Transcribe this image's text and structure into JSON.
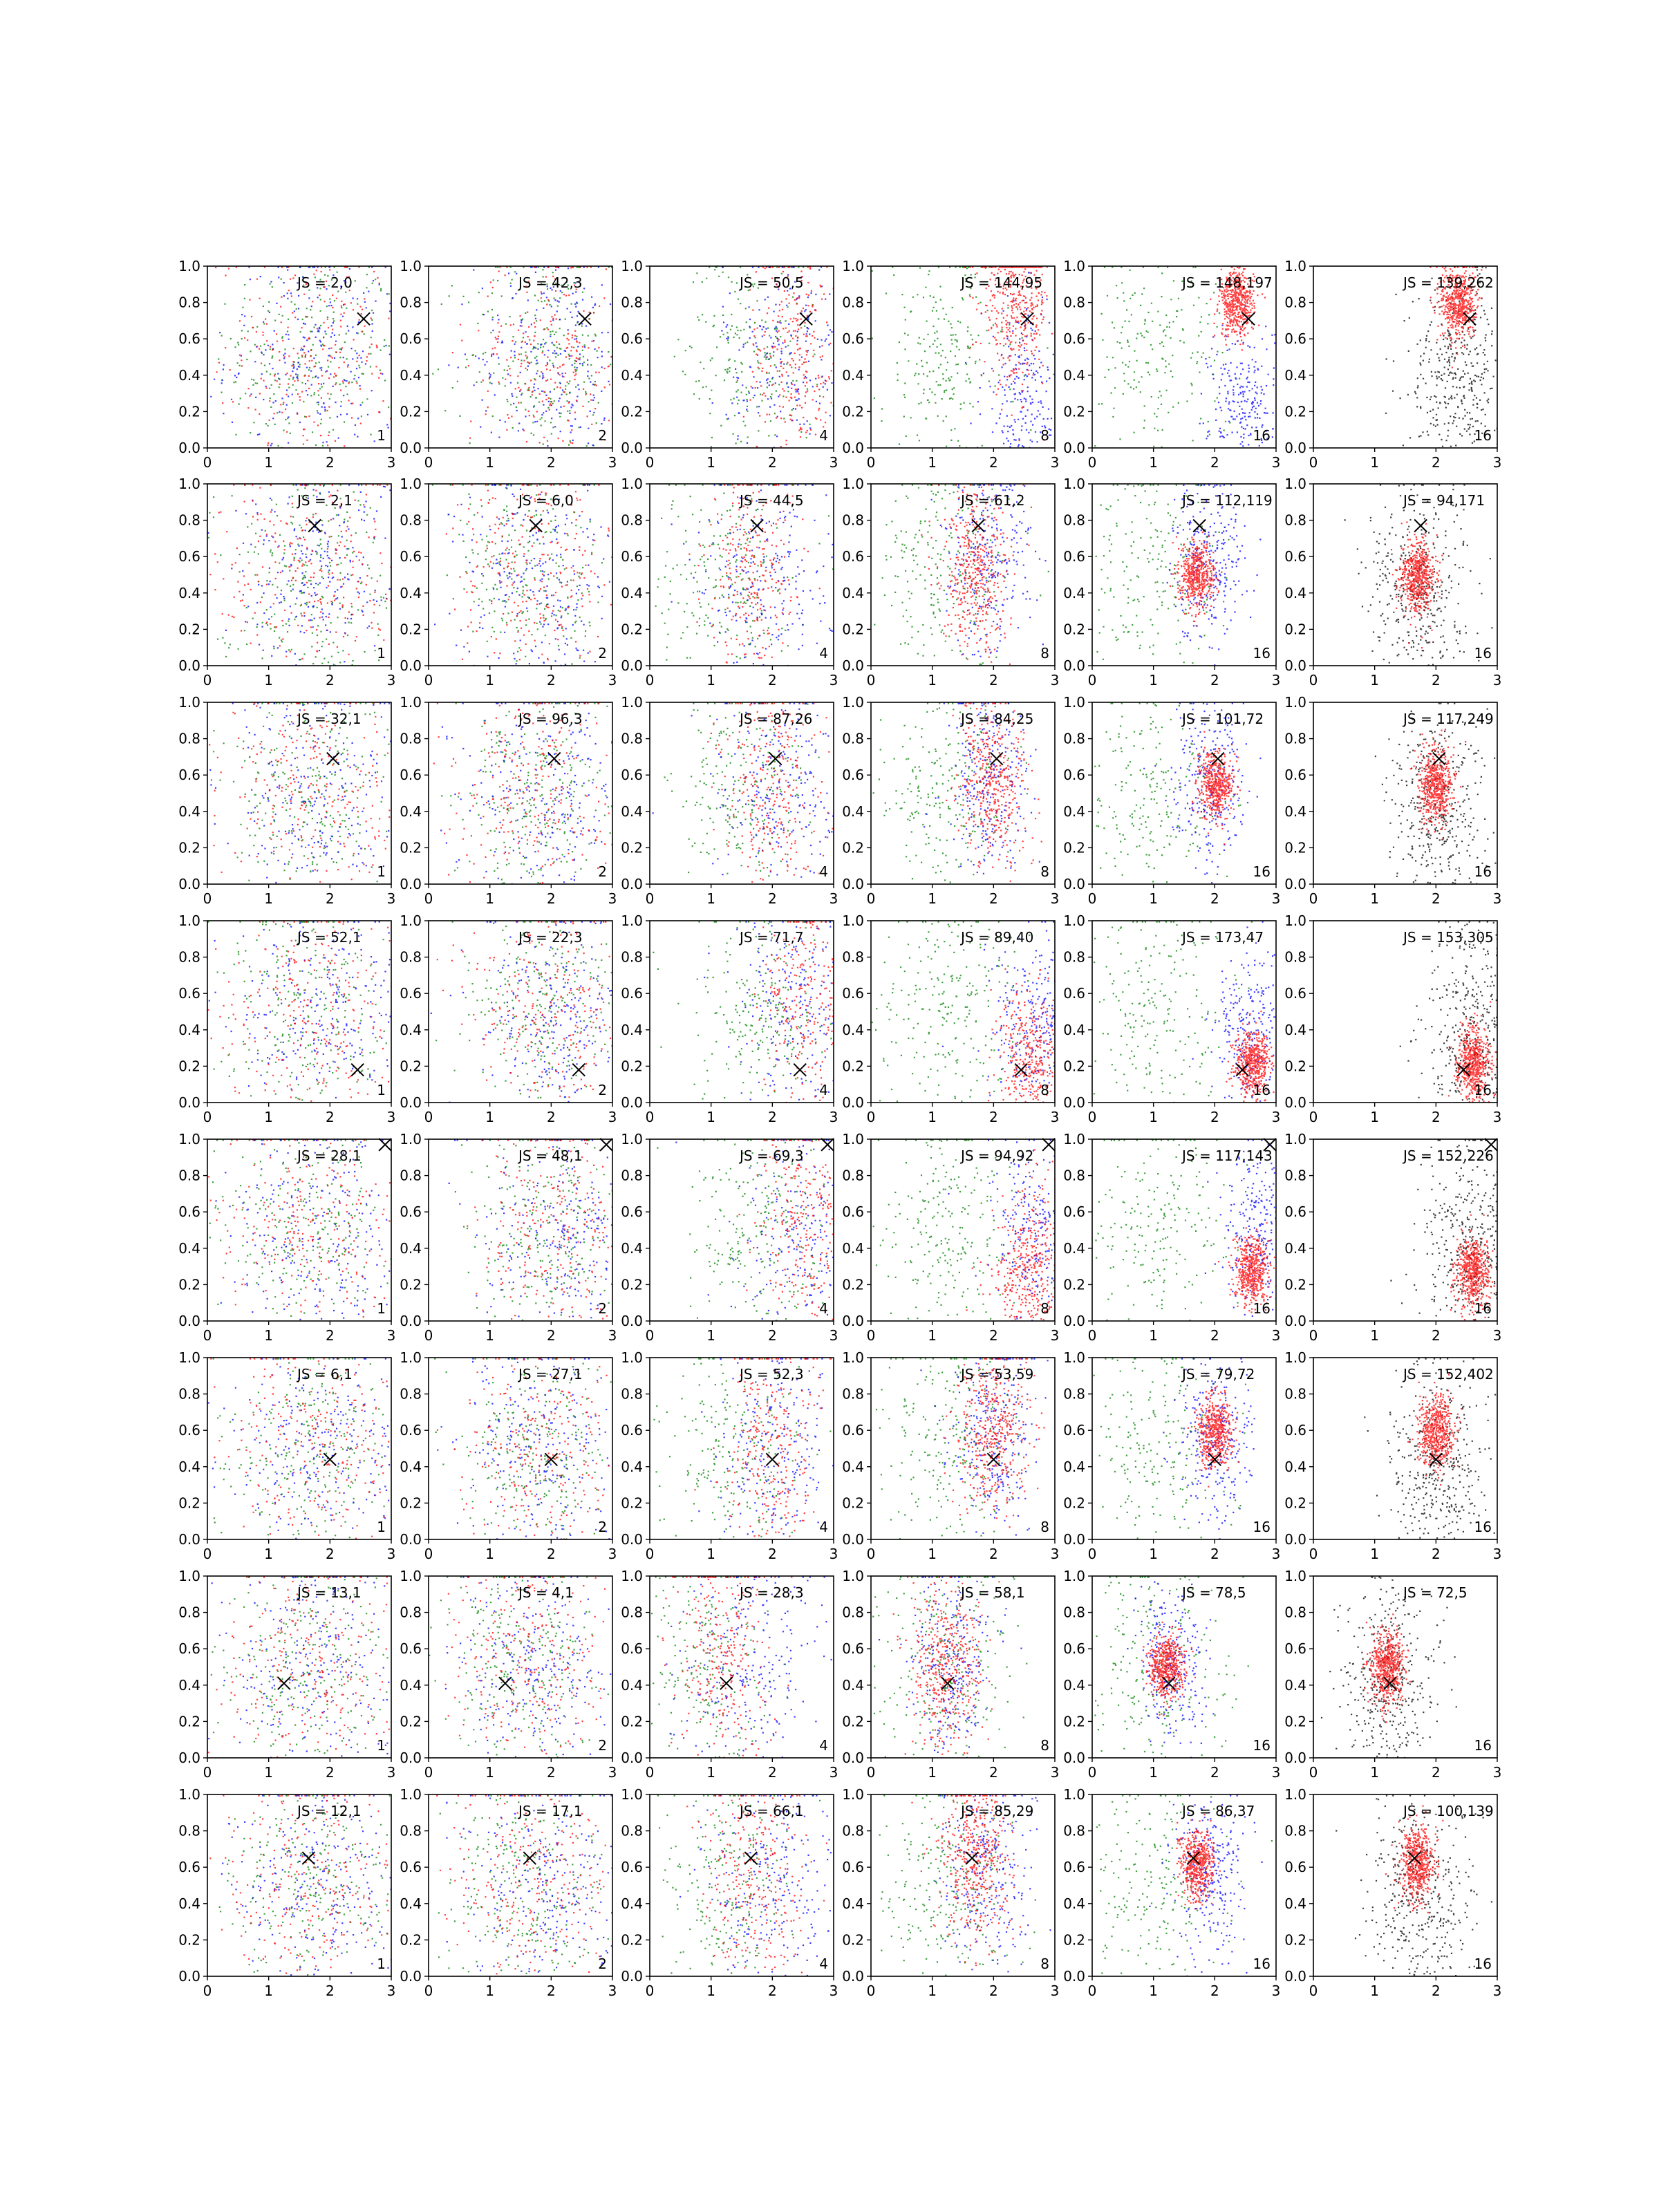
{
  "chart_data": {
    "type": "scatter",
    "layout": {
      "rows": 8,
      "cols": 6
    },
    "xlim": [
      0,
      3
    ],
    "ylim": [
      0,
      1
    ],
    "xticks": [
      "0",
      "1",
      "2",
      "3"
    ],
    "yticks": [
      "0.0",
      "0.2",
      "0.4",
      "0.6",
      "0.8",
      "1.0"
    ],
    "grid": false,
    "colors": {
      "green": "#008000",
      "blue": "#0000ff",
      "red": "#ff0000",
      "black": "#000000",
      "marker": "#000000"
    },
    "rows": [
      {
        "marker": [
          2.55,
          0.71
        ],
        "js_labels": [
          "JS = 2,0",
          "JS = 42,3",
          "JS = 50,5",
          "JS = 144,95",
          "JS = 148,197",
          "JS = 139,262"
        ],
        "corner_labels": [
          "1",
          "2",
          "4",
          "8",
          "16",
          "16"
        ],
        "red_center": [
          2.35,
          0.8
        ],
        "blue_center": [
          2.5,
          0.25
        ]
      },
      {
        "marker": [
          1.75,
          0.77
        ],
        "js_labels": [
          "JS = 2,1",
          "JS = 6,0",
          "JS = 44,5",
          "JS = 61,2",
          "JS = 112,119",
          "JS = 94,171"
        ],
        "corner_labels": [
          "1",
          "2",
          "4",
          "8",
          "16",
          "16"
        ],
        "red_center": [
          1.7,
          0.5
        ],
        "blue_center": [
          1.9,
          0.6
        ]
      },
      {
        "marker": [
          2.05,
          0.69
        ],
        "js_labels": [
          "JS = 32,1",
          "JS = 96,3",
          "JS = 87,26",
          "JS = 84,25",
          "JS = 101,72",
          "JS = 117,249"
        ],
        "corner_labels": [
          "1",
          "2",
          "4",
          "8",
          "16",
          "16"
        ],
        "red_center": [
          2.0,
          0.55
        ],
        "blue_center": [
          1.9,
          0.55
        ]
      },
      {
        "marker": [
          2.45,
          0.18
        ],
        "js_labels": [
          "JS = 52,1",
          "JS = 22,3",
          "JS = 71,7",
          "JS = 89,40",
          "JS = 173,47",
          "JS = 153,305"
        ],
        "corner_labels": [
          "1",
          "2",
          "4",
          "8",
          "16",
          "16"
        ],
        "red_center": [
          2.6,
          0.22
        ],
        "blue_center": [
          2.6,
          0.4
        ]
      },
      {
        "marker": [
          2.9,
          0.97
        ],
        "js_labels": [
          "JS = 28,1",
          "JS = 48,1",
          "JS = 69,3",
          "JS = 94,92",
          "JS = 117,143",
          "JS = 152,226"
        ],
        "corner_labels": [
          "1",
          "2",
          "4",
          "8",
          "16",
          "16"
        ],
        "red_center": [
          2.6,
          0.27
        ],
        "blue_center": [
          2.7,
          0.5
        ]
      },
      {
        "marker": [
          2.0,
          0.44
        ],
        "js_labels": [
          "JS = 6,1",
          "JS = 27,1",
          "JS = 52,3",
          "JS = 53,59",
          "JS = 79,72",
          "JS = 152,402"
        ],
        "corner_labels": [
          "1",
          "2",
          "4",
          "8",
          "16",
          "16"
        ],
        "red_center": [
          2.0,
          0.6
        ],
        "blue_center": [
          2.0,
          0.55
        ]
      },
      {
        "marker": [
          1.25,
          0.41
        ],
        "js_labels": [
          "JS = 13,1",
          "JS = 4,1",
          "JS = 28,3",
          "JS = 58,1",
          "JS = 78,5",
          "JS = 72,5"
        ],
        "corner_labels": [
          "1",
          "2",
          "4",
          "8",
          "16",
          "16"
        ],
        "red_center": [
          1.2,
          0.5
        ],
        "blue_center": [
          1.3,
          0.5
        ]
      },
      {
        "marker": [
          1.65,
          0.65
        ],
        "js_labels": [
          "JS = 12,1",
          "JS = 17,1",
          "JS = 66,1",
          "JS = 85,29",
          "JS = 86,37",
          "JS = 100,139"
        ],
        "corner_labels": [
          "1",
          "2",
          "4",
          "8",
          "16",
          "16"
        ],
        "red_center": [
          1.7,
          0.62
        ],
        "blue_center": [
          1.9,
          0.55
        ]
      }
    ]
  }
}
